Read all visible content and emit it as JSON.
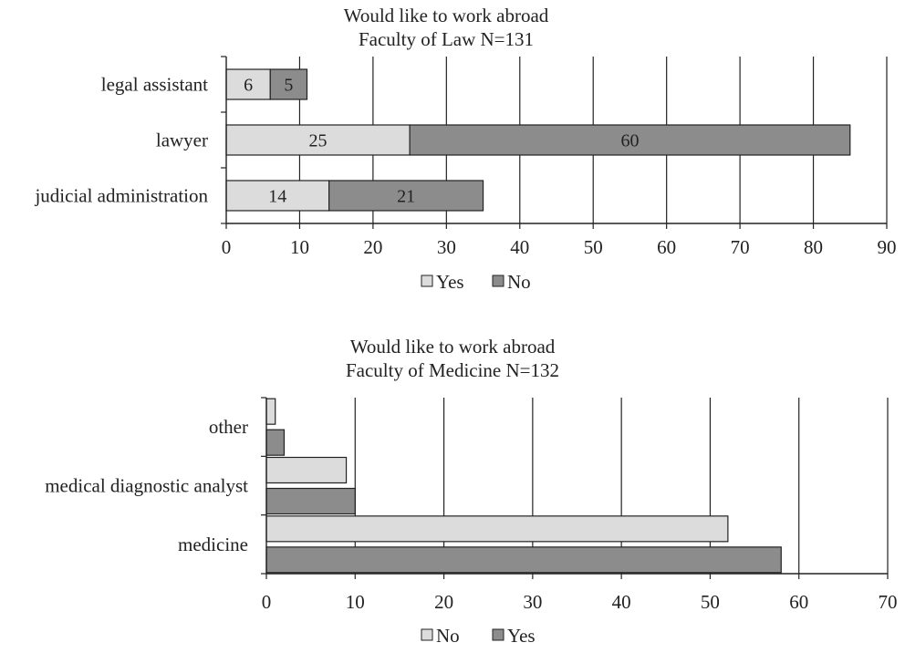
{
  "colors": {
    "light": "#dcdcdc",
    "dark": "#8c8c8c",
    "stroke": "#222222",
    "grid": "#222222"
  },
  "chart_data": [
    {
      "type": "bar",
      "orientation": "horizontal",
      "stacked": true,
      "title": "Would like to work abroad",
      "subtitle": "Faculty of Law N=131",
      "categories": [
        "legal assistant",
        "lawyer",
        "judicial administration"
      ],
      "series": [
        {
          "name": "Yes",
          "values": [
            6,
            25,
            14
          ],
          "color": "#dcdcdc"
        },
        {
          "name": "No",
          "values": [
            5,
            60,
            21
          ],
          "color": "#8c8c8c"
        }
      ],
      "xlim": [
        0,
        90
      ],
      "xticks": [
        0,
        10,
        20,
        30,
        40,
        50,
        60,
        70,
        80,
        90
      ],
      "data_labels": true,
      "grid": "vertical",
      "legend": "bottom-center"
    },
    {
      "type": "bar",
      "orientation": "horizontal",
      "stacked": false,
      "title": "Would like to work abroad",
      "subtitle": "Faculty of Medicine N=132",
      "categories": [
        "other",
        "medical diagnostic analyst",
        "medicine"
      ],
      "series": [
        {
          "name": "No",
          "values": [
            1,
            9,
            52
          ],
          "color": "#dcdcdc"
        },
        {
          "name": "Yes",
          "values": [
            2,
            10,
            58
          ],
          "color": "#8c8c8c"
        }
      ],
      "xlim": [
        0,
        70
      ],
      "xticks": [
        0,
        10,
        20,
        30,
        40,
        50,
        60,
        70
      ],
      "data_labels": false,
      "grid": "vertical",
      "legend": "bottom-center"
    }
  ]
}
